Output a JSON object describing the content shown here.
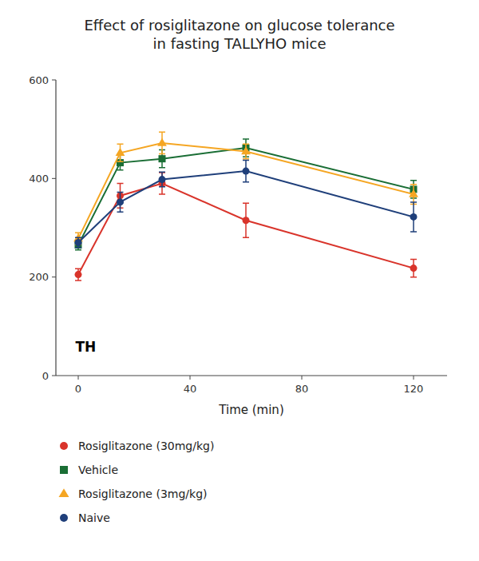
{
  "chart_data": {
    "type": "line",
    "title": "Effect of rosiglitazone on glucose tolerance\nin fasting TALLYHO mice",
    "x_label": "Time (min)",
    "annotation": "TH",
    "x": [
      0,
      15,
      30,
      60,
      120
    ],
    "xlim": [
      -8,
      132
    ],
    "xticks": [
      0,
      40,
      80,
      120
    ],
    "ylim": [
      0,
      600
    ],
    "yticks": [
      0,
      200,
      400,
      600
    ],
    "grid": false,
    "legend": "bottom",
    "series": [
      {
        "name": "Rosiglitazone (30mg/kg)",
        "color": "#d9342b",
        "marker": "circle",
        "values": [
          205,
          365,
          390,
          315,
          218
        ],
        "errors": [
          12,
          25,
          22,
          35,
          18
        ]
      },
      {
        "name": "Vehicle",
        "color": "#1a6e35",
        "marker": "square",
        "values": [
          265,
          432,
          440,
          462,
          378
        ],
        "errors": [
          10,
          15,
          18,
          18,
          18
        ]
      },
      {
        "name": "Rosiglitazone (3mg/kg)",
        "color": "#f5a623",
        "marker": "triangle",
        "values": [
          278,
          452,
          472,
          455,
          368
        ],
        "errors": [
          12,
          18,
          22,
          15,
          20
        ]
      },
      {
        "name": "Naive",
        "color": "#1f3f7a",
        "marker": "circle",
        "values": [
          270,
          352,
          398,
          415,
          322
        ],
        "errors": [
          10,
          20,
          15,
          22,
          30
        ]
      }
    ]
  }
}
